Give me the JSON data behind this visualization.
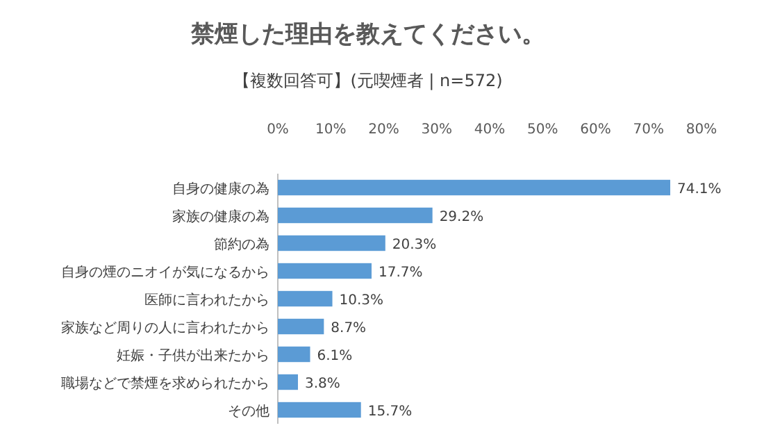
{
  "chart_data": {
    "type": "bar",
    "orientation": "horizontal",
    "title": "禁煙した理由を教えてください。",
    "subtitle": "【複数回答可】(元喫煙者 | n=572)",
    "categories": [
      "自身の健康の為",
      "家族の健康の為",
      "節約の為",
      "自身の煙のニオイが気になるから",
      "医師に言われたから",
      "家族など周りの人に言われたから",
      "妊娠・子供が出来たから",
      "職場などで禁煙を求められたから",
      "その他"
    ],
    "values": [
      74.1,
      29.2,
      20.3,
      17.7,
      10.3,
      8.7,
      6.1,
      3.8,
      15.7
    ],
    "value_labels": [
      "74.1%",
      "29.2%",
      "20.3%",
      "17.7%",
      "10.3%",
      "8.7%",
      "6.1%",
      "3.8%",
      "15.7%"
    ],
    "color": "#5b9bd5",
    "xlim": [
      0,
      80
    ],
    "xticks": [
      {
        "value": 0,
        "label": "0%"
      },
      {
        "value": 10,
        "label": "10%"
      },
      {
        "value": 20,
        "label": "20%"
      },
      {
        "value": 30,
        "label": "30%"
      },
      {
        "value": 40,
        "label": "40%"
      },
      {
        "value": 50,
        "label": "50%"
      },
      {
        "value": 60,
        "label": "60%"
      },
      {
        "value": 70,
        "label": "70%"
      },
      {
        "value": 80,
        "label": "80%"
      }
    ],
    "grid": false
  }
}
